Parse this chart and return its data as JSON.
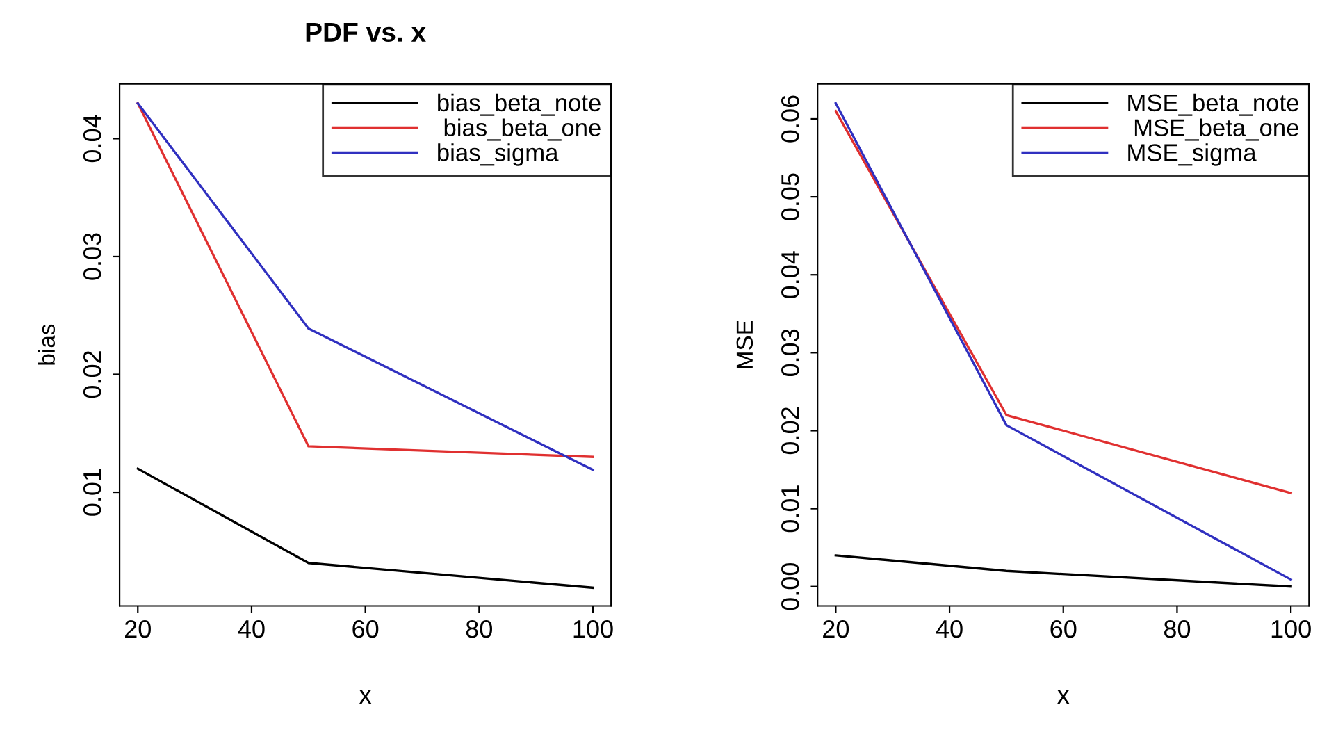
{
  "chart_data": [
    {
      "type": "line",
      "title": "PDF vs. x",
      "xlabel": "x",
      "ylabel": "bias",
      "x": [
        20,
        50,
        100
      ],
      "xlim": [
        16.8,
        103.2
      ],
      "ylim": [
        0.00036,
        0.04464
      ],
      "xticks": [
        20,
        40,
        60,
        80,
        100
      ],
      "yticks": [
        0.01,
        0.02,
        0.03,
        0.04
      ],
      "legend": "top right",
      "grid": false,
      "line_style": "solid",
      "series": [
        {
          "name": "bias_beta_note",
          "color": "#000000",
          "values": [
            0.012,
            0.004,
            0.0019
          ]
        },
        {
          "name": " bias_beta_one",
          "color": "#e03030",
          "values": [
            0.043,
            0.0139,
            0.013
          ]
        },
        {
          "name": "bias_sigma",
          "color": "#3030c0",
          "values": [
            0.043,
            0.0239,
            0.0119
          ]
        }
      ]
    },
    {
      "type": "line",
      "xlabel": "x",
      "ylabel": "MSE",
      "x": [
        20,
        50,
        100
      ],
      "xlim": [
        16.8,
        103.2
      ],
      "ylim": [
        -0.00248,
        0.06448
      ],
      "xticks": [
        20,
        40,
        60,
        80,
        100
      ],
      "yticks": [
        {
          "value": 0.0,
          "label": "0.00"
        },
        0.01,
        0.02,
        0.03,
        0.04,
        0.05,
        0.06
      ],
      "legend": "top right",
      "grid": false,
      "line_style": "solid",
      "series": [
        {
          "name": "MSE_beta_note",
          "color": "#000000",
          "values": [
            0.004,
            0.002,
            0.0
          ]
        },
        {
          "name": " MSE_beta_one",
          "color": "#e03030",
          "values": [
            0.061,
            0.022,
            0.012
          ]
        },
        {
          "name": "MSE_sigma",
          "color": "#3030c0",
          "values": [
            0.062,
            0.0207,
            0.0009
          ]
        }
      ]
    }
  ]
}
